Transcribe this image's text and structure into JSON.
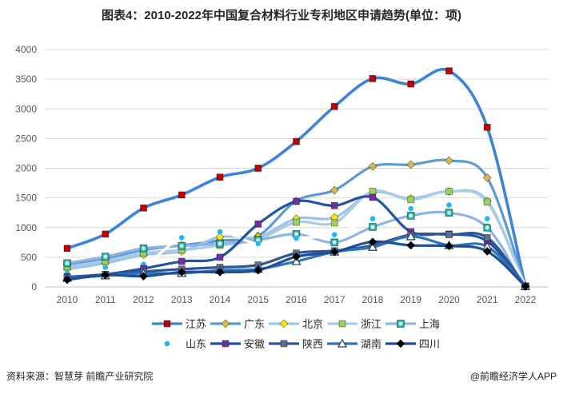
{
  "chart_data": {
    "type": "line",
    "title": "图表4：2010-2022年中国复合材料行业专利地区申请趋势(单位：项)",
    "x": [
      2010,
      2011,
      2012,
      2013,
      2014,
      2015,
      2016,
      2017,
      2018,
      2019,
      2020,
      2021,
      2022
    ],
    "ylim": [
      0,
      4000
    ],
    "yticks": [
      0,
      500,
      1000,
      1500,
      2000,
      2500,
      3000,
      3500,
      4000
    ],
    "grid": true,
    "legend": "bottom",
    "series": [
      {
        "name": "江苏",
        "line_color": "#3C84DB",
        "marker": "square",
        "marker_color": "#C00000",
        "values": [
          650,
          890,
          1330,
          1550,
          1850,
          2000,
          2450,
          3040,
          3510,
          3420,
          3640,
          2690,
          10
        ]
      },
      {
        "name": "广东",
        "line_color": "#5B9BD5",
        "marker": "diamond",
        "marker_color": "#D9B84A",
        "values": [
          380,
          480,
          620,
          700,
          780,
          860,
          1450,
          1630,
          2030,
          2060,
          2130,
          1840,
          10
        ]
      },
      {
        "name": "北京",
        "line_color": "#9DC3E6",
        "marker": "diamond",
        "marker_color": "#FFE600",
        "values": [
          300,
          400,
          540,
          600,
          840,
          840,
          1150,
          1170,
          1590,
          1490,
          1610,
          1450,
          10
        ]
      },
      {
        "name": "浙江",
        "line_color": "#A9CBEA",
        "marker": "square",
        "marker_color": "#9BD35A",
        "values": [
          340,
          440,
          570,
          620,
          700,
          800,
          1090,
          1080,
          1610,
          1470,
          1610,
          1430,
          10
        ]
      },
      {
        "name": "上海",
        "line_color": "#8FB4E3",
        "marker": "square-star",
        "marker_color": "#1AAE9F",
        "values": [
          400,
          510,
          650,
          690,
          730,
          790,
          890,
          750,
          1010,
          1200,
          1250,
          1000,
          10
        ]
      },
      {
        "name": "山东",
        "line_color": "#FFFFFF",
        "marker": "circle",
        "marker_color": "#1FB8F0",
        "values": [
          240,
          330,
          380,
          830,
          930,
          730,
          820,
          880,
          1150,
          1320,
          1380,
          1150,
          10
        ]
      },
      {
        "name": "安徽",
        "line_color": "#2152A3",
        "marker": "square",
        "marker_color": "#7030A0",
        "values": [
          170,
          210,
          310,
          430,
          500,
          1060,
          1440,
          1370,
          1510,
          930,
          890,
          770,
          10
        ]
      },
      {
        "name": "陕西",
        "line_color": "#2F5597",
        "marker": "square",
        "marker_color": "#5F6E8C",
        "values": [
          160,
          210,
          260,
          300,
          330,
          370,
          570,
          610,
          700,
          880,
          880,
          830,
          10
        ]
      },
      {
        "name": "湖南",
        "line_color": "#2E75B6",
        "marker": "triangle",
        "marker_color": "#FFFFFF",
        "values": [
          150,
          190,
          230,
          230,
          280,
          300,
          430,
          590,
          670,
          850,
          700,
          680,
          10
        ]
      },
      {
        "name": "四川",
        "line_color": "#1F4E9A",
        "marker": "diamond",
        "marker_color": "#000000",
        "values": [
          120,
          200,
          180,
          250,
          250,
          280,
          510,
          590,
          760,
          700,
          690,
          600,
          10
        ]
      }
    ]
  },
  "footer": {
    "source": "资料来源：智慧芽 前瞻产业研究院",
    "brand": "@前瞻经济学人APP"
  }
}
